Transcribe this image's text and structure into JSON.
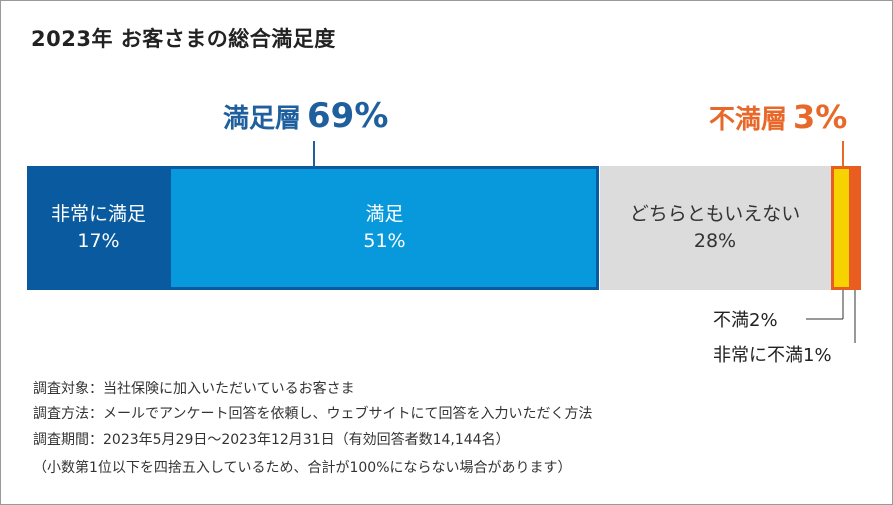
{
  "title": "2023年 お客さまの総合満足度",
  "group_labels": {
    "satisfied": {
      "label": "満足層",
      "value": "69%",
      "color": "#1f5f9e"
    },
    "dissatisfied": {
      "label": "不満層",
      "value": "3%",
      "color": "#e8682a"
    }
  },
  "chart_data": {
    "type": "bar",
    "orientation": "horizontal-stacked-100",
    "title": "2023年 お客さまの総合満足度",
    "categories": [
      "非常に満足",
      "満足",
      "どちらともいえない",
      "不満",
      "非常に不満"
    ],
    "values": [
      17,
      51,
      28,
      2,
      1
    ],
    "value_labels": [
      "17%",
      "51%",
      "28%",
      "2%",
      "1%"
    ],
    "colors": [
      "#0a5aa0",
      "#0898dc",
      "#dcdcdc",
      "#f6d200",
      "#e95d20"
    ],
    "groups": [
      {
        "name": "満足層",
        "value": 69
      },
      {
        "name": "不満層",
        "value": 3
      }
    ]
  },
  "side_labels": {
    "dissatisfied": "不満2%",
    "very_dissatisfied": "非常に不満1%"
  },
  "footnotes": [
    "調査対象：当社保険に加入いただいているお客さま",
    "調査方法：メールでアンケート回答を依頼し、ウェブサイトにて回答を入力いただく方法",
    "調査期間：2023年5月29日～2023年12月31日（有効回答者数14,144名）",
    "（小数第1位以下を四捨五入しているため、合計が100%にならない場合があります）"
  ]
}
